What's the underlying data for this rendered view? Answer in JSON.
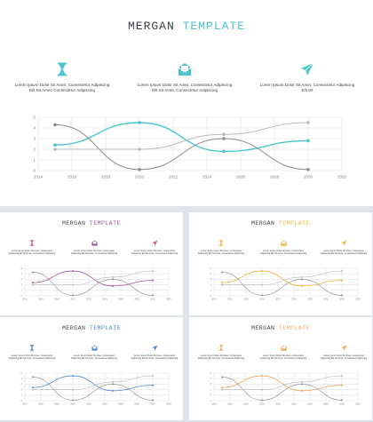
{
  "main": {
    "title_word1": "MERGAN",
    "title_word2": "TEMPLATE",
    "accent": "#4cc5cc",
    "features": [
      {
        "icon": "hourglass-icon",
        "text": "Lorem Ipsum Dolor Sit Amet, Consectetur Adipiscing Elit Sit Amet, Consectetur Adipiscing"
      },
      {
        "icon": "envelope-icon",
        "text": "Lorem Ipsum Dolor Sit Amet, Consectetur Adipiscing Elit Sit Amet, Consectetur Adipiscing"
      },
      {
        "icon": "paper-plane-icon",
        "text": "Lorem Ipsum Dolor Sit Amet, Consectetur Adipiscing Elit Sit"
      }
    ]
  },
  "thumbnails": [
    {
      "title_word1": "MERGAN",
      "title_word2": "TEMPLATE",
      "accent": "#a05a9a",
      "accent2": "#c86478"
    },
    {
      "title_word1": "MERGAN",
      "title_word2": "TEMPLATE",
      "accent": "#f0b43c",
      "accent2": "#f0b43c"
    },
    {
      "title_word1": "MERGAN",
      "title_word2": "TEMPLATE",
      "accent": "#4a8fd0",
      "accent2": "#4a8fd0"
    },
    {
      "title_word1": "MERGAN",
      "title_word2": "TEMPLATE",
      "accent": "#eea95a",
      "accent2": "#eea95a"
    }
  ],
  "thumb_feature_text": "Lorem Ipsum Dolor Sit Amet, Consectetur Adipiscing Elit Sit Amet, Consectetur Adipiscing",
  "chart_data": {
    "type": "line",
    "x_ticks": [
      "2014",
      "2016",
      "2018",
      "2020",
      "2022",
      "2024",
      "2026",
      "2028",
      "2030",
      "2032"
    ],
    "y_ticks": [
      "0",
      "1",
      "2",
      "3",
      "4",
      "5"
    ],
    "xlim": [
      2014,
      2032
    ],
    "ylim": [
      0,
      5
    ],
    "grid": true,
    "series": [
      {
        "color_key": "accent",
        "x": [
          2015,
          2020,
          2025,
          2030
        ],
        "y": [
          2.4,
          4.5,
          1.8,
          2.8
        ]
      },
      {
        "color_key": "gray_dark",
        "x": [
          2015,
          2020,
          2025,
          2030
        ],
        "y": [
          4.3,
          0.1,
          3.0,
          0.1
        ]
      },
      {
        "color_key": "gray_light",
        "x": [
          2015,
          2020,
          2025,
          2030
        ],
        "y": [
          2.0,
          2.0,
          3.4,
          4.5
        ]
      }
    ],
    "colors": {
      "gray_dark": "#8c8c8c",
      "gray_light": "#b9b9b9",
      "grid": "#e2e2e2"
    }
  }
}
